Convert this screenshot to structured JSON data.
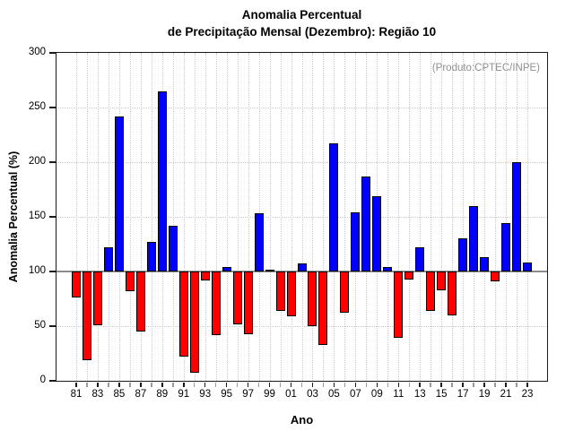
{
  "chart_data": {
    "type": "bar",
    "title_line1": "Anomalia Percentual",
    "title_line2": "de Precipitação Mensal (Dezembro): Região 10",
    "annotation": "(Produto:CPTEC/INPE)",
    "xlabel": "Ano",
    "ylabel": "Anomalia Percentual (%)",
    "ylim": [
      0,
      300
    ],
    "baseline": 100,
    "ytick_values": [
      0,
      50,
      100,
      150,
      200,
      250,
      300
    ],
    "ytick_labels": [
      "0",
      "50",
      "100",
      "150",
      "200",
      "250",
      "300"
    ],
    "grid_horizontal_values": [
      50,
      150,
      200,
      250
    ],
    "grid_vertical": "every-year",
    "legend": "none",
    "x_labeled_years": [
      "81",
      "83",
      "85",
      "87",
      "89",
      "91",
      "93",
      "95",
      "97",
      "99",
      "01",
      "03",
      "05",
      "07",
      "09",
      "11",
      "13",
      "15",
      "17",
      "19",
      "21",
      "23"
    ],
    "categories": [
      "81",
      "82",
      "83",
      "84",
      "85",
      "86",
      "87",
      "88",
      "89",
      "90",
      "91",
      "92",
      "93",
      "94",
      "95",
      "96",
      "97",
      "98",
      "99",
      "00",
      "01",
      "02",
      "03",
      "04",
      "05",
      "06",
      "07",
      "08",
      "09",
      "10",
      "11",
      "12",
      "13",
      "14",
      "15",
      "16",
      "17",
      "18",
      "19",
      "20",
      "21",
      "22",
      "23"
    ],
    "full_years": [
      1981,
      1982,
      1983,
      1984,
      1985,
      1986,
      1987,
      1988,
      1989,
      1990,
      1991,
      1992,
      1993,
      1994,
      1995,
      1996,
      1997,
      1998,
      1999,
      2000,
      2001,
      2002,
      2003,
      2004,
      2005,
      2006,
      2007,
      2008,
      2009,
      2010,
      2011,
      2012,
      2013,
      2014,
      2015,
      2016,
      2017,
      2018,
      2019,
      2020,
      2021,
      2022,
      2023
    ],
    "values": [
      76,
      19,
      51,
      122,
      242,
      82,
      45,
      127,
      265,
      142,
      22,
      7,
      92,
      42,
      104,
      52,
      43,
      153,
      100,
      64,
      59,
      107,
      50,
      33,
      217,
      62,
      154,
      187,
      169,
      104,
      39,
      93,
      122,
      64,
      83,
      60,
      130,
      160,
      113,
      91,
      144,
      200,
      108
    ],
    "colors": {
      "above_baseline": "#0000ff",
      "below_baseline": "#ff0000",
      "bar_outline": "#000000",
      "baseline_line": "#8c8c8c",
      "grid": "#c9c9c9",
      "frame": "#1a1a1a",
      "annotation_text": "#909090",
      "minor_tick": "#999999",
      "major_tick": "#1a1a1a"
    }
  }
}
